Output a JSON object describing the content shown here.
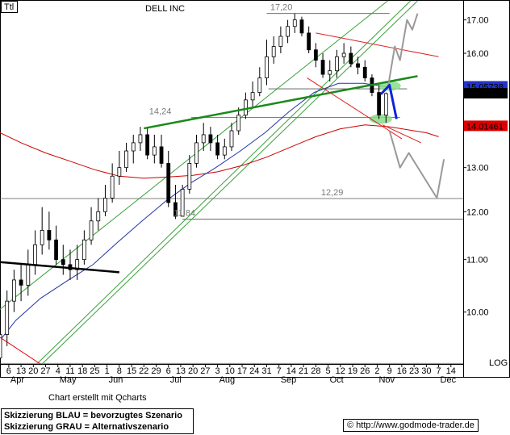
{
  "chart_data": {
    "type": "candlestick",
    "title": "DELL INC",
    "symbol_box": "Ttl",
    "y_scale": "log",
    "y_range": [
      9.1,
      17.6
    ],
    "y_ticks": [
      "17.00",
      "16.00",
      "15.00",
      "14.00",
      "13.00",
      "12.00",
      "11.00",
      "10.00"
    ],
    "y_tick_values": [
      17,
      16,
      15,
      14,
      13,
      12,
      11,
      10
    ],
    "scale_label": "LOG",
    "x_ticks": [
      "6",
      "13",
      "20",
      "27",
      "4",
      "11",
      "18",
      "25",
      "1",
      "8",
      "15",
      "22",
      "29",
      "6",
      "13",
      "20",
      "27",
      "3",
      "10",
      "17",
      "24",
      "31",
      "7",
      "14",
      "21",
      "28",
      "5",
      "12",
      "19",
      "26",
      "2",
      "9",
      "16",
      "23",
      "30",
      "7",
      "14"
    ],
    "x_tick_dates": [
      "2004-04-06",
      "2004-04-13",
      "2004-04-20",
      "2004-04-27",
      "2004-05-04",
      "2004-05-11",
      "2004-05-18",
      "2004-05-25",
      "2004-06-01",
      "2004-06-08",
      "2004-06-15",
      "2004-06-22",
      "2004-06-29",
      "2004-07-06",
      "2004-07-13",
      "2004-07-20",
      "2004-07-27",
      "2004-08-03",
      "2004-08-10",
      "2004-08-17",
      "2004-08-24",
      "2004-08-31",
      "2004-09-07",
      "2004-09-14",
      "2004-09-21",
      "2004-09-28",
      "2004-10-05",
      "2004-10-12",
      "2004-10-19",
      "2004-10-26",
      "2004-11-02",
      "2004-11-09",
      "2004-11-16",
      "2004-11-23",
      "2004-11-30",
      "2004-12-07",
      "2004-12-14"
    ],
    "month_labels": [
      "Apr",
      "May",
      "Jun",
      "Jul",
      "Aug",
      "Sep",
      "Oct",
      "Nov",
      "Dec"
    ],
    "month_dates": [
      "2004-04-06",
      "2004-05-04",
      "2004-06-01",
      "2004-07-06",
      "2004-08-03",
      "2004-09-07",
      "2004-10-05",
      "2004-11-02",
      "2004-12-07"
    ],
    "last_price": "14.87",
    "last_price_value": 14.87,
    "price_badges": [
      {
        "text": "15.05738",
        "value": 15.05738,
        "color": "#2233cc"
      },
      {
        "text": "14.01461",
        "value": 14.01461,
        "color": "#dd0000"
      }
    ],
    "annotations": [
      {
        "text": "17,20",
        "value": 17.2,
        "date": "2004-09-02"
      },
      {
        "text": "14,24",
        "value": 14.24,
        "date": "2004-06-25"
      },
      {
        "text": "12,29",
        "value": 12.29,
        "date": "2004-10-01"
      },
      {
        "text": "11,84",
        "value": 11.84,
        "date": "2004-07-09"
      }
    ],
    "horizontal_levels": [
      {
        "value": 17.2,
        "from": "2004-08-31",
        "to": "2004-11-09"
      },
      {
        "value": 14.24,
        "from": "2004-07-19",
        "to": "2004-11-15"
      },
      {
        "value": 12.29,
        "from": "2004-04-01",
        "to": "2004-12-21"
      },
      {
        "value": 11.84,
        "from": "2004-07-14",
        "to": "2004-12-21"
      },
      {
        "value": 15.0,
        "from": "2004-09-01",
        "to": "2004-11-19"
      },
      {
        "value": 9.11,
        "from": "2004-04-01",
        "to": "2004-12-21"
      }
    ],
    "channel_lines": [
      {
        "from": [
          "2004-04-01",
          10.05
        ],
        "to": [
          "2004-11-08",
          17.6
        ]
      },
      {
        "from": [
          "2004-04-25",
          9.1
        ],
        "to": [
          "2004-11-25",
          17.6
        ]
      },
      {
        "from": [
          "2004-04-22",
          9.1
        ],
        "to": [
          "2004-11-21",
          17.6
        ]
      }
    ],
    "trend_lines": [
      {
        "name": "green",
        "color": "#1a8a1a",
        "from": [
          "2004-06-22",
          13.96
        ],
        "to": [
          "2004-11-25",
          15.35
        ]
      },
      {
        "name": "red-upper",
        "color": "#dd2222",
        "from": [
          "2004-09-28",
          16.6
        ],
        "to": [
          "2004-12-07",
          15.9
        ]
      },
      {
        "name": "red-lower",
        "color": "#dd2222",
        "from": [
          "2004-09-23",
          15.3
        ],
        "to": [
          "2004-11-16",
          13.7
        ]
      },
      {
        "name": "red-support",
        "color": "#dd2222",
        "from": [
          "2004-11-05",
          14.05
        ],
        "to": [
          "2004-11-27",
          13.6
        ]
      },
      {
        "name": "black",
        "color": "#000000",
        "from": [
          "2004-04-01",
          10.95
        ],
        "to": [
          "2004-06-08",
          10.75
        ]
      },
      {
        "name": "red-bottom",
        "color": "#dd0000",
        "from": [
          "2004-04-01",
          9.55
        ],
        "to": [
          "2004-04-24",
          9.1
        ]
      }
    ],
    "moving_average_red": {
      "color": "#cc0000",
      "dates": [
        "2004-04-01",
        "2004-04-13",
        "2004-04-27",
        "2004-05-11",
        "2004-05-25",
        "2004-06-08",
        "2004-06-22",
        "2004-07-06",
        "2004-07-20",
        "2004-08-03",
        "2004-08-17",
        "2004-08-31",
        "2004-09-14",
        "2004-09-28",
        "2004-10-12",
        "2004-10-26",
        "2004-11-09",
        "2004-11-30",
        "2004-12-07"
      ],
      "values": [
        13.85,
        13.6,
        13.35,
        13.15,
        12.95,
        12.8,
        12.75,
        12.78,
        12.82,
        12.9,
        13.05,
        13.25,
        13.5,
        13.75,
        13.95,
        14.05,
        14.0,
        13.85,
        13.75
      ]
    },
    "moving_average_blue": {
      "color": "#2233aa",
      "dates": [
        "2004-04-01",
        "2004-04-10",
        "2004-04-24",
        "2004-05-10",
        "2004-05-24",
        "2004-06-07",
        "2004-06-21",
        "2004-07-05",
        "2004-07-19",
        "2004-08-02",
        "2004-08-16",
        "2004-08-30",
        "2004-09-13",
        "2004-09-27",
        "2004-10-11",
        "2004-10-25",
        "2004-11-08"
      ],
      "values": [
        9.5,
        9.85,
        10.25,
        10.6,
        10.9,
        11.35,
        11.8,
        12.25,
        12.65,
        13.0,
        13.4,
        13.85,
        14.4,
        14.9,
        15.15,
        15.15,
        15.05
      ]
    },
    "candles": {
      "dates": [
        "2004-04-01",
        "2004-04-05",
        "2004-04-09",
        "2004-04-13",
        "2004-04-17",
        "2004-04-21",
        "2004-04-25",
        "2004-04-29",
        "2004-05-03",
        "2004-05-07",
        "2004-05-11",
        "2004-05-15",
        "2004-05-19",
        "2004-05-23",
        "2004-05-27",
        "2004-05-31",
        "2004-06-04",
        "2004-06-08",
        "2004-06-12",
        "2004-06-16",
        "2004-06-20",
        "2004-06-24",
        "2004-06-28",
        "2004-07-02",
        "2004-07-06",
        "2004-07-10",
        "2004-07-14",
        "2004-07-18",
        "2004-07-22",
        "2004-07-26",
        "2004-07-30",
        "2004-08-03",
        "2004-08-07",
        "2004-08-11",
        "2004-08-15",
        "2004-08-19",
        "2004-08-23",
        "2004-08-27",
        "2004-08-31",
        "2004-09-04",
        "2004-09-08",
        "2004-09-12",
        "2004-09-16",
        "2004-09-20",
        "2004-09-24",
        "2004-09-28",
        "2004-10-02",
        "2004-10-06",
        "2004-10-10",
        "2004-10-14",
        "2004-10-18",
        "2004-10-22",
        "2004-10-26",
        "2004-10-30",
        "2004-11-03",
        "2004-11-07"
      ],
      "open": [
        9.2,
        9.6,
        10.2,
        10.6,
        10.5,
        10.9,
        11.3,
        11.6,
        11.4,
        11.0,
        10.9,
        10.8,
        11.0,
        11.4,
        11.8,
        12.0,
        12.3,
        12.8,
        13.0,
        13.4,
        13.6,
        13.8,
        13.3,
        13.5,
        13.1,
        12.2,
        11.9,
        12.5,
        13.1,
        13.6,
        13.8,
        13.6,
        13.3,
        13.5,
        13.9,
        14.3,
        14.7,
        14.9,
        15.3,
        15.9,
        16.2,
        16.5,
        16.8,
        17.0,
        16.6,
        16.1,
        15.8,
        15.4,
        15.5,
        15.9,
        16.0,
        15.7,
        15.6,
        15.3,
        14.9,
        14.3
      ],
      "high": [
        9.8,
        10.4,
        10.8,
        10.9,
        11.2,
        11.6,
        12.1,
        12.0,
        11.7,
        11.3,
        11.2,
        11.3,
        11.6,
        12.1,
        12.3,
        12.6,
        13.1,
        13.4,
        13.6,
        13.8,
        14.0,
        14.0,
        13.8,
        13.8,
        13.4,
        12.6,
        12.6,
        13.3,
        13.8,
        14.1,
        14.0,
        13.8,
        13.7,
        14.1,
        14.5,
        14.9,
        15.2,
        15.6,
        16.4,
        16.5,
        16.8,
        17.0,
        17.2,
        17.1,
        16.8,
        16.3,
        16.0,
        15.8,
        16.1,
        16.3,
        16.2,
        15.9,
        15.8,
        15.4,
        15.1,
        14.9
      ],
      "low": [
        9.1,
        9.4,
        10.0,
        10.2,
        10.3,
        10.7,
        11.1,
        11.2,
        10.9,
        10.7,
        10.6,
        10.6,
        10.9,
        11.3,
        11.6,
        11.9,
        12.2,
        12.6,
        12.9,
        13.1,
        13.4,
        13.2,
        13.1,
        13.0,
        12.1,
        11.84,
        11.9,
        12.4,
        13.0,
        13.4,
        13.4,
        13.2,
        13.2,
        13.4,
        13.8,
        14.2,
        14.5,
        14.8,
        15.1,
        15.7,
        16.0,
        16.3,
        16.6,
        16.5,
        16.0,
        15.6,
        15.3,
        15.2,
        15.3,
        15.7,
        15.6,
        15.4,
        15.2,
        14.8,
        14.2,
        14.1
      ],
      "close": [
        9.6,
        10.2,
        10.6,
        10.5,
        10.9,
        11.3,
        11.6,
        11.4,
        11.0,
        10.9,
        10.8,
        11.0,
        11.4,
        11.8,
        12.0,
        12.3,
        12.8,
        13.0,
        13.4,
        13.6,
        13.8,
        13.3,
        13.5,
        13.1,
        12.2,
        11.9,
        12.5,
        13.1,
        13.6,
        13.8,
        13.6,
        13.3,
        13.5,
        13.9,
        14.3,
        14.7,
        14.9,
        15.3,
        15.9,
        16.2,
        16.5,
        16.8,
        17.0,
        16.6,
        16.1,
        15.8,
        15.4,
        15.5,
        15.9,
        16.0,
        15.7,
        15.6,
        15.3,
        14.9,
        14.3,
        14.87
      ]
    },
    "scenario_blue": {
      "color": "#1122dd",
      "points": [
        [
          "2004-11-04",
          14.85
        ],
        [
          "2004-11-09",
          15.1
        ],
        [
          "2004-11-13",
          14.2
        ]
      ]
    },
    "scenario_grey": {
      "color": "#999999",
      "points": [
        [
          "2004-11-08",
          15.0
        ],
        [
          "2004-11-12",
          16.2
        ],
        [
          "2004-11-15",
          15.8
        ],
        [
          "2004-11-19",
          17.0
        ],
        [
          "2004-11-22",
          16.7
        ],
        [
          "2004-11-25",
          17.2
        ]
      ]
    },
    "scenario_grey_down": {
      "color": "#999999",
      "points": [
        [
          "2004-11-09",
          13.9
        ],
        [
          "2004-11-15",
          13.0
        ],
        [
          "2004-11-20",
          13.35
        ],
        [
          "2004-12-06",
          12.3
        ],
        [
          "2004-12-10",
          13.2
        ]
      ]
    },
    "highlight_ellipses": [
      {
        "date": "2004-11-09",
        "value": 15.08,
        "color": "#88dd88"
      },
      {
        "date": "2004-11-04",
        "value": 14.2,
        "color": "#88dd88"
      }
    ]
  },
  "footer": {
    "credit": "Chart erstellt mit Qcharts",
    "legend_blue": "Skizzierung BLAU = bevorzugtes Szenario",
    "legend_grey": "Skizzierung GRAU = Alternativszenario",
    "website": "© http://www.godmode-trader.de"
  }
}
